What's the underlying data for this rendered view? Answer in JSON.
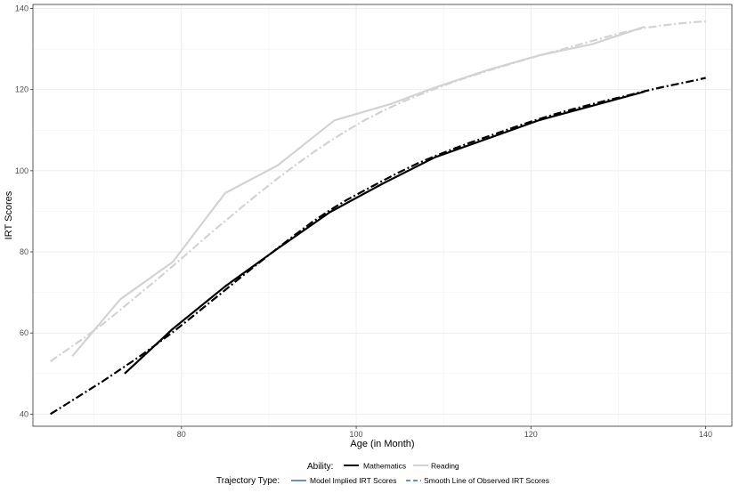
{
  "chart_data": {
    "type": "line",
    "xlabel": "Age (in Month)",
    "ylabel": "IRT Scores",
    "xlim": [
      63,
      143
    ],
    "ylim": [
      37,
      141
    ],
    "x_ticks": [
      80,
      100,
      120,
      140
    ],
    "y_ticks": [
      40,
      60,
      80,
      100,
      120,
      140
    ],
    "grid": true,
    "legend_placement": "bottom",
    "legends": {
      "ability": {
        "title": "Ability:",
        "entries": [
          {
            "label": "Mathematics",
            "color": "#000000"
          },
          {
            "label": "Reading",
            "color": "#d3d3d3"
          }
        ]
      },
      "trajectory": {
        "title": "Trajectory Type:",
        "entries": [
          {
            "label": "Model Implied IRT Scores",
            "color": "#3366dd",
            "style": "solid"
          },
          {
            "label": "Smooth Line of Observed IRT Scores",
            "color": "#3366dd",
            "style": "dashed"
          }
        ]
      }
    },
    "series": [
      {
        "ability": "Reading",
        "trajectory": "Smooth Line of Observed IRT Scores",
        "color": "#d3d3d3",
        "style": "dashdot",
        "points": [
          [
            65,
            53
          ],
          [
            67,
            56
          ],
          [
            69,
            59
          ],
          [
            71,
            62.2
          ],
          [
            73,
            65.7
          ],
          [
            75,
            69.3
          ],
          [
            77,
            72.8
          ],
          [
            79,
            76.5
          ],
          [
            81,
            80.2
          ],
          [
            83,
            84
          ],
          [
            85,
            87.6
          ],
          [
            87,
            91.2
          ],
          [
            89,
            94.7
          ],
          [
            91,
            98.1
          ],
          [
            93,
            101.3
          ],
          [
            95,
            104.4
          ],
          [
            97,
            107.3
          ],
          [
            99,
            110
          ],
          [
            101,
            112.5
          ],
          [
            103,
            114.7
          ],
          [
            105,
            116.7
          ],
          [
            107,
            118.5
          ],
          [
            109,
            120.2
          ],
          [
            111,
            121.8
          ],
          [
            113,
            123.2
          ],
          [
            115,
            124.6
          ],
          [
            117,
            125.9
          ],
          [
            119,
            127.2
          ],
          [
            121,
            128.4
          ],
          [
            123,
            129.6
          ],
          [
            125,
            130.8
          ],
          [
            127,
            132
          ],
          [
            129,
            133.2
          ],
          [
            131,
            134.3
          ],
          [
            133,
            135.2
          ],
          [
            135,
            135.8
          ],
          [
            137,
            136.3
          ],
          [
            139,
            136.7
          ],
          [
            140,
            136.8
          ]
        ]
      },
      {
        "ability": "Reading",
        "trajectory": "Model Implied IRT Scores",
        "color": "#d3d3d3",
        "style": "solid",
        "points": [
          [
            67.5,
            54.3
          ],
          [
            73,
            68.3
          ],
          [
            79,
            77.5
          ],
          [
            85,
            94.5
          ],
          [
            91,
            101.3
          ],
          [
            97.5,
            112.4
          ],
          [
            104,
            116.5
          ],
          [
            109,
            120.5
          ],
          [
            115,
            124.8
          ],
          [
            121,
            128.5
          ],
          [
            127,
            131.2
          ],
          [
            133,
            135.5
          ]
        ]
      },
      {
        "ability": "Mathematics",
        "trajectory": "Smooth Line of Observed IRT Scores",
        "color": "#000000",
        "style": "dashdot",
        "points": [
          [
            65,
            40
          ],
          [
            67,
            42.7
          ],
          [
            69,
            45.4
          ],
          [
            71,
            48.1
          ],
          [
            73,
            51
          ],
          [
            75,
            53.9
          ],
          [
            77,
            57
          ],
          [
            79,
            60.2
          ],
          [
            81,
            63.6
          ],
          [
            83,
            67.1
          ],
          [
            85,
            70.6
          ],
          [
            87,
            74.1
          ],
          [
            89,
            77.5
          ],
          [
            91,
            80.9
          ],
          [
            93,
            84.2
          ],
          [
            95,
            87.4
          ],
          [
            97,
            90.3
          ],
          [
            99,
            92.9
          ],
          [
            101,
            95.2
          ],
          [
            103,
            97.5
          ],
          [
            105,
            99.7
          ],
          [
            107,
            101.8
          ],
          [
            109,
            103.6
          ],
          [
            111,
            105.3
          ],
          [
            113,
            106.9
          ],
          [
            115,
            108.4
          ],
          [
            117,
            109.9
          ],
          [
            119,
            111.4
          ],
          [
            121,
            112.8
          ],
          [
            123,
            114.1
          ],
          [
            125,
            115.3
          ],
          [
            127,
            116.4
          ],
          [
            129,
            117.5
          ],
          [
            131,
            118.5
          ],
          [
            133,
            119.6
          ],
          [
            135,
            120.6
          ],
          [
            137,
            121.5
          ],
          [
            139,
            122.4
          ],
          [
            140,
            122.9
          ]
        ]
      },
      {
        "ability": "Mathematics",
        "trajectory": "Model Implied IRT Scores",
        "color": "#000000",
        "style": "solid",
        "points": [
          [
            73.5,
            50
          ],
          [
            79,
            61
          ],
          [
            85,
            71.5
          ],
          [
            91,
            80.8
          ],
          [
            97,
            89.8
          ],
          [
            103,
            96.8
          ],
          [
            109,
            103.3
          ],
          [
            115,
            107.9
          ],
          [
            121,
            112.5
          ],
          [
            127,
            116
          ],
          [
            133,
            119.5
          ]
        ]
      }
    ]
  }
}
